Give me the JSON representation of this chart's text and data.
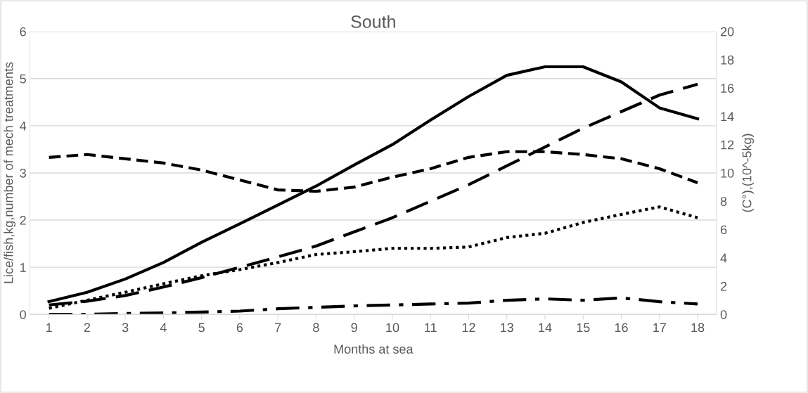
{
  "chart_data": {
    "type": "line",
    "title": "South",
    "xlabel": "Months at sea",
    "ylabel": "Lice/fish,kg,number of mech treatments",
    "y2label": "(C°),(10^-5kg)",
    "categories": [
      "1",
      "2",
      "3",
      "4",
      "5",
      "6",
      "7",
      "8",
      "9",
      "10",
      "11",
      "12",
      "13",
      "14",
      "15",
      "16",
      "17",
      "18"
    ],
    "ylim": [
      0,
      6
    ],
    "yticks": [
      0,
      1,
      2,
      3,
      4,
      5,
      6
    ],
    "y2lim": [
      0,
      20
    ],
    "y2ticks": [
      0,
      2,
      4,
      6,
      8,
      10,
      12,
      14,
      16,
      18,
      20
    ],
    "grid": "y",
    "marker": "none",
    "series": [
      {
        "color": "#000000",
        "line_style": "solid",
        "values": [
          0.27,
          0.47,
          0.75,
          1.1,
          1.53,
          1.92,
          2.32,
          2.72,
          3.17,
          3.6,
          4.12,
          4.62,
          5.07,
          5.25,
          5.25,
          4.93,
          4.38,
          4.15
        ]
      },
      {
        "color": "#000000",
        "line_style": "longdash",
        "values": [
          0.2,
          0.28,
          0.4,
          0.58,
          0.78,
          1.0,
          1.22,
          1.45,
          1.75,
          2.05,
          2.4,
          2.75,
          3.15,
          3.55,
          3.95,
          4.3,
          4.65,
          4.88
        ]
      },
      {
        "color": "#000000",
        "line_style": "dashed",
        "axis": "y2",
        "values": [
          11.1,
          11.3,
          11.0,
          10.7,
          10.2,
          9.5,
          8.8,
          8.7,
          9.0,
          9.7,
          10.3,
          11.1,
          11.5,
          11.5,
          11.3,
          11.0,
          10.3,
          9.3
        ]
      },
      {
        "color": "#000000",
        "line_style": "dotted",
        "values": [
          0.13,
          0.3,
          0.47,
          0.65,
          0.82,
          0.95,
          1.1,
          1.27,
          1.33,
          1.4,
          1.4,
          1.43,
          1.63,
          1.72,
          1.95,
          2.12,
          2.28,
          2.05
        ]
      },
      {
        "color": "#000000",
        "line_style": "dashdot",
        "values": [
          0,
          0,
          0.02,
          0.03,
          0.05,
          0.07,
          0.12,
          0.15,
          0.18,
          0.2,
          0.22,
          0.24,
          0.3,
          0.33,
          0.3,
          0.35,
          0.27,
          0.22
        ]
      }
    ]
  }
}
